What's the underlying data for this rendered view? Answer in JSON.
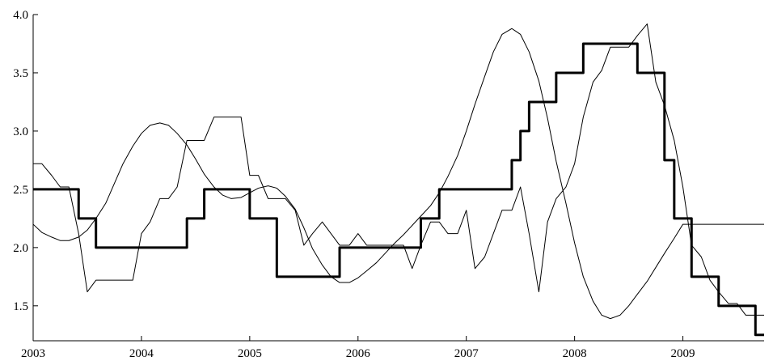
{
  "chart_data": {
    "type": "line",
    "title": "",
    "xlabel": "",
    "ylabel": "",
    "xlim": [
      2003.0,
      2009.75
    ],
    "ylim": [
      1.2,
      4.0
    ],
    "grid": false,
    "x_ticks": [
      {
        "value": 2003,
        "label": "2003"
      },
      {
        "value": 2004,
        "label": "2004"
      },
      {
        "value": 2005,
        "label": "2005"
      },
      {
        "value": 2006,
        "label": "2006"
      },
      {
        "value": 2007,
        "label": "2007"
      },
      {
        "value": 2008,
        "label": "2008"
      },
      {
        "value": 2009,
        "label": "2009"
      }
    ],
    "y_ticks": [
      {
        "value": 1.5,
        "label": "1.5"
      },
      {
        "value": 2.0,
        "label": "2.0"
      },
      {
        "value": 2.5,
        "label": "2.5"
      },
      {
        "value": 3.0,
        "label": "3.0"
      },
      {
        "value": 3.5,
        "label": "3.5"
      },
      {
        "value": 4.0,
        "label": "4.0"
      }
    ],
    "series": [
      {
        "style": "thick",
        "step": true,
        "x": [
          2003.0,
          2003.33,
          2003.42,
          2003.5,
          2003.58,
          2003.67,
          2003.75,
          2003.83,
          2003.92,
          2004.0,
          2004.08,
          2004.17,
          2004.25,
          2004.33,
          2004.42,
          2004.5,
          2004.58,
          2004.67,
          2004.75,
          2004.83,
          2004.92,
          2005.0,
          2005.08,
          2005.17,
          2005.25,
          2005.33,
          2005.42,
          2005.5,
          2005.58,
          2005.67,
          2005.75,
          2005.83,
          2005.92,
          2006.0,
          2006.08,
          2006.17,
          2006.25,
          2006.33,
          2006.42,
          2006.5,
          2006.58,
          2006.67,
          2006.75,
          2006.83,
          2006.92,
          2007.0,
          2007.08,
          2007.17,
          2007.25,
          2007.33,
          2007.42,
          2007.5,
          2007.58,
          2007.67,
          2007.75,
          2007.83,
          2007.92,
          2008.0,
          2008.08,
          2008.17,
          2008.25,
          2008.33,
          2008.42,
          2008.5,
          2008.58,
          2008.67,
          2008.75,
          2008.83,
          2008.92,
          2009.0,
          2009.08,
          2009.17,
          2009.25,
          2009.33,
          2009.42,
          2009.5,
          2009.58,
          2009.67,
          2009.75
        ],
        "values": [
          2.5,
          2.5,
          2.25,
          2.25,
          2.0,
          2.0,
          2.0,
          2.0,
          2.0,
          2.0,
          2.0,
          2.0,
          2.0,
          2.0,
          2.25,
          2.25,
          2.5,
          2.5,
          2.5,
          2.5,
          2.5,
          2.25,
          2.25,
          2.25,
          1.75,
          1.75,
          1.75,
          1.75,
          1.75,
          1.75,
          1.75,
          2.0,
          2.0,
          2.0,
          2.0,
          2.0,
          2.0,
          2.0,
          2.0,
          2.0,
          2.25,
          2.25,
          2.5,
          2.5,
          2.5,
          2.5,
          2.5,
          2.5,
          2.5,
          2.5,
          2.75,
          3.0,
          3.25,
          3.25,
          3.25,
          3.5,
          3.5,
          3.5,
          3.75,
          3.75,
          3.75,
          3.75,
          3.75,
          3.75,
          3.5,
          3.5,
          3.5,
          2.75,
          2.25,
          2.25,
          1.75,
          1.75,
          1.75,
          1.5,
          1.5,
          1.5,
          1.5,
          1.25,
          1.25
        ]
      },
      {
        "style": "thin",
        "step": false,
        "x": [
          2003.0,
          2003.08,
          2003.17,
          2003.25,
          2003.33,
          2003.42,
          2003.5,
          2003.58,
          2003.67,
          2003.75,
          2003.83,
          2003.92,
          2004.0,
          2004.08,
          2004.17,
          2004.25,
          2004.33,
          2004.42,
          2004.5,
          2004.58,
          2004.67,
          2004.75,
          2004.83,
          2004.92,
          2005.0,
          2005.08,
          2005.17,
          2005.25,
          2005.33,
          2005.42,
          2005.5,
          2005.58,
          2005.67,
          2005.75,
          2005.83,
          2005.92,
          2006.0,
          2006.08,
          2006.17,
          2006.25,
          2006.33,
          2006.42,
          2006.5,
          2006.58,
          2006.67,
          2006.75,
          2006.83,
          2006.92,
          2007.0,
          2007.08,
          2007.17,
          2007.25,
          2007.33,
          2007.42,
          2007.5,
          2007.58,
          2007.67,
          2007.75,
          2007.83,
          2007.92,
          2008.0,
          2008.08,
          2008.17,
          2008.25,
          2008.33,
          2008.42,
          2008.5,
          2008.58,
          2008.67,
          2008.75,
          2008.83,
          2008.92,
          2009.0,
          2009.08,
          2009.17,
          2009.25,
          2009.33,
          2009.42,
          2009.5,
          2009.58,
          2009.67,
          2009.75
        ],
        "values": [
          2.72,
          2.72,
          2.62,
          2.52,
          2.52,
          2.12,
          1.62,
          1.72,
          1.72,
          1.72,
          1.72,
          1.72,
          2.12,
          2.22,
          2.42,
          2.42,
          2.52,
          2.92,
          2.92,
          2.92,
          3.12,
          3.12,
          3.12,
          3.12,
          2.62,
          2.62,
          2.42,
          2.42,
          2.42,
          2.32,
          2.02,
          2.12,
          2.22,
          2.12,
          2.02,
          2.02,
          2.12,
          2.02,
          2.02,
          2.02,
          2.02,
          2.02,
          1.82,
          2.02,
          2.22,
          2.22,
          2.12,
          2.12,
          2.32,
          1.82,
          1.92,
          2.12,
          2.32,
          2.32,
          2.52,
          2.12,
          1.62,
          2.22,
          2.42,
          2.52,
          2.72,
          3.12,
          3.42,
          3.52,
          3.72,
          3.72,
          3.72,
          3.82,
          3.92,
          3.42,
          3.22,
          2.92,
          2.52,
          2.02,
          1.92,
          1.72,
          1.62,
          1.52,
          1.52,
          1.42,
          1.42,
          1.42
        ]
      },
      {
        "style": "thin",
        "step": false,
        "x": [
          2003.0,
          2003.08,
          2003.17,
          2003.25,
          2003.33,
          2003.42,
          2003.5,
          2003.58,
          2003.67,
          2003.75,
          2003.83,
          2003.92,
          2004.0,
          2004.08,
          2004.17,
          2004.25,
          2004.33,
          2004.42,
          2004.5,
          2004.58,
          2004.67,
          2004.75,
          2004.83,
          2004.92,
          2005.0,
          2005.08,
          2005.17,
          2005.25,
          2005.33,
          2005.42,
          2005.5,
          2005.58,
          2005.67,
          2005.75,
          2005.83,
          2005.92,
          2006.0,
          2006.08,
          2006.17,
          2006.25,
          2006.33,
          2006.42,
          2006.5,
          2006.58,
          2006.67,
          2006.75,
          2006.83,
          2006.92,
          2007.0,
          2007.08,
          2007.17,
          2007.25,
          2007.33,
          2007.42,
          2007.5,
          2007.58,
          2007.67,
          2007.75,
          2007.83,
          2007.92,
          2008.0,
          2008.08,
          2008.17,
          2008.25,
          2008.33,
          2008.42,
          2008.5,
          2008.58,
          2008.67,
          2008.75,
          2008.83,
          2008.92,
          2009.0,
          2009.08,
          2009.17,
          2009.25,
          2009.33,
          2009.42,
          2009.5,
          2009.58,
          2009.67,
          2009.75
        ],
        "values": [
          2.2,
          2.13,
          2.09,
          2.06,
          2.06,
          2.09,
          2.15,
          2.25,
          2.38,
          2.55,
          2.72,
          2.87,
          2.98,
          3.05,
          3.07,
          3.05,
          2.98,
          2.88,
          2.76,
          2.63,
          2.52,
          2.45,
          2.42,
          2.43,
          2.47,
          2.51,
          2.53,
          2.51,
          2.44,
          2.33,
          2.17,
          1.99,
          1.85,
          1.75,
          1.7,
          1.7,
          1.74,
          1.8,
          1.87,
          1.95,
          2.03,
          2.11,
          2.19,
          2.27,
          2.36,
          2.47,
          2.61,
          2.79,
          3.0,
          3.23,
          3.47,
          3.68,
          3.83,
          3.88,
          3.83,
          3.68,
          3.43,
          3.11,
          2.74,
          2.38,
          2.04,
          1.75,
          1.54,
          1.42,
          1.39,
          1.42,
          1.5,
          1.6,
          1.71,
          1.83,
          1.95,
          2.08,
          2.2,
          2.2,
          2.2,
          2.2,
          2.2,
          2.2,
          2.2,
          2.2,
          2.2,
          2.2
        ]
      }
    ]
  }
}
